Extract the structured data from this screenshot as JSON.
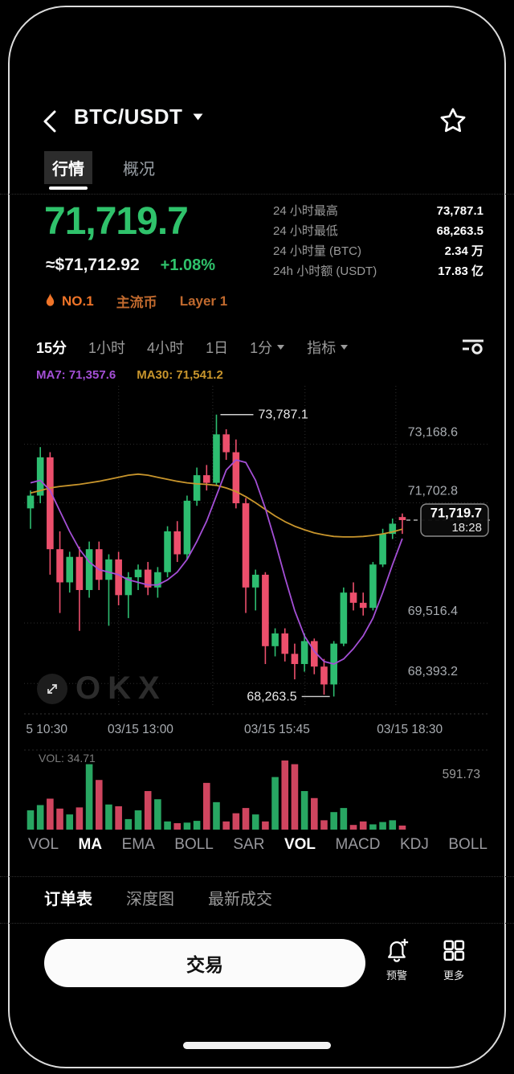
{
  "header": {
    "title": "BTC/USDT"
  },
  "top_tabs": [
    {
      "label": "行情",
      "active": true
    },
    {
      "label": "概况",
      "active": false
    }
  ],
  "price": {
    "last": "71,719.7",
    "fiat": "≈$71,712.92",
    "change": "+1.08%"
  },
  "badges": [
    {
      "label": "NO.1",
      "icon": "flame",
      "bright": true
    },
    {
      "label": "主流币",
      "bright": false
    },
    {
      "label": "Layer 1",
      "bright": false
    }
  ],
  "stats": [
    {
      "label": "24 小时最高",
      "value": "73,787.1"
    },
    {
      "label": "24 小时最低",
      "value": "68,263.5"
    },
    {
      "label": "24 小时量 (BTC)",
      "value": "2.34 万"
    },
    {
      "label": "24h 小时额 (USDT)",
      "value": "17.83 亿"
    }
  ],
  "timeframes": [
    {
      "label": "15分",
      "active": true,
      "caret": false
    },
    {
      "label": "1小时",
      "active": false,
      "caret": false
    },
    {
      "label": "4小时",
      "active": false,
      "caret": false
    },
    {
      "label": "1日",
      "active": false,
      "caret": false
    },
    {
      "label": "1分",
      "active": false,
      "caret": true
    },
    {
      "label": "指标",
      "active": false,
      "caret": true
    }
  ],
  "watermark": "OKX",
  "chart_data": {
    "type": "candlestick",
    "title": "BTC/USDT 15分 K线",
    "ma_labels": {
      "ma7": "MA7: 71,357.6",
      "ma30": "MA30: 71,541.2"
    },
    "ylim": [
      68050,
      74350
    ],
    "grid": true,
    "y_ticks": [
      {
        "label": "73,168.6",
        "pos": 0.144
      },
      {
        "label": "71,702.8",
        "pos": 0.326
      },
      {
        "label": "69,516.4",
        "pos": 0.7
      },
      {
        "label": "68,393.2",
        "pos": 0.888
      }
    ],
    "x_ticks": [
      {
        "label": "5 10:30",
        "x": 0.004,
        "anchor": "start"
      },
      {
        "label": "03/15 13:00",
        "x": 0.25,
        "anchor": "middle"
      },
      {
        "label": "03/15 15:45",
        "x": 0.543,
        "anchor": "middle"
      },
      {
        "label": "03/15 18:30",
        "x": 0.828,
        "anchor": "middle"
      }
    ],
    "grid_x": [
      0.203,
      0.405,
      0.603,
      0.798
    ],
    "annotations": {
      "high": "73,787.1",
      "low": "68,263.5",
      "last": "71,719.7",
      "last_time": "18:28"
    },
    "candles": [
      [
        71950,
        72300,
        71550,
        72200
      ],
      [
        72200,
        73150,
        72050,
        72950
      ],
      [
        72950,
        73050,
        70650,
        71150
      ],
      [
        71150,
        71500,
        69900,
        70500
      ],
      [
        70500,
        71100,
        70300,
        71000
      ],
      [
        71000,
        71200,
        69550,
        70350
      ],
      [
        70350,
        71300,
        70200,
        71150
      ],
      [
        71150,
        71300,
        70350,
        70550
      ],
      [
        70550,
        71050,
        69650,
        70950
      ],
      [
        70950,
        71100,
        70050,
        70250
      ],
      [
        70250,
        70700,
        69800,
        70600
      ],
      [
        70600,
        70850,
        70350,
        70750
      ],
      [
        70750,
        70900,
        70250,
        70400
      ],
      [
        70400,
        70800,
        70200,
        70700
      ],
      [
        70700,
        71600,
        70600,
        71500
      ],
      [
        71500,
        71700,
        70900,
        71050
      ],
      [
        71050,
        72200,
        70950,
        72100
      ],
      [
        72100,
        72750,
        72000,
        72600
      ],
      [
        72600,
        72800,
        72300,
        72450
      ],
      [
        72450,
        73787.1,
        72400,
        73400
      ],
      [
        73400,
        73500,
        72900,
        73050
      ],
      [
        73050,
        73300,
        71950,
        72050
      ],
      [
        72050,
        72150,
        69900,
        70400
      ],
      [
        70400,
        70750,
        69950,
        70650
      ],
      [
        70650,
        70700,
        68900,
        69250
      ],
      [
        69250,
        69600,
        69050,
        69500
      ],
      [
        69500,
        69600,
        68950,
        69100
      ],
      [
        69100,
        69300,
        68600,
        68900
      ],
      [
        68900,
        69500,
        68750,
        69350
      ],
      [
        69350,
        69400,
        68700,
        68850
      ],
      [
        68850,
        69000,
        68300,
        68500
      ],
      [
        68500,
        69350,
        68263.5,
        69300
      ],
      [
        69300,
        70400,
        69250,
        70300
      ],
      [
        70300,
        70500,
        69950,
        70100
      ],
      [
        70100,
        70300,
        69850,
        70000
      ],
      [
        70000,
        70900,
        69950,
        70850
      ],
      [
        70850,
        71550,
        70800,
        71450
      ],
      [
        71450,
        71750,
        71350,
        71650
      ],
      [
        71780,
        71850,
        71450,
        71719.7
      ]
    ],
    "ma7": [
      72450,
      72500,
      72300,
      71900,
      71500,
      71150,
      70900,
      70750,
      70700,
      70650,
      70550,
      70500,
      70450,
      70450,
      70550,
      70700,
      70950,
      71300,
      71700,
      72200,
      72700,
      72900,
      72850,
      72500,
      71950,
      71300,
      70600,
      69950,
      69450,
      69150,
      68950,
      68900,
      69000,
      69200,
      69450,
      69800,
      70300,
      70850,
      71357.6
    ],
    "ma30": [
      72250,
      72300,
      72350,
      72380,
      72400,
      72420,
      72450,
      72480,
      72520,
      72560,
      72600,
      72620,
      72600,
      72560,
      72520,
      72480,
      72450,
      72430,
      72420,
      72400,
      72350,
      72280,
      72180,
      72060,
      71930,
      71800,
      71690,
      71600,
      71530,
      71470,
      71430,
      71400,
      71390,
      71390,
      71400,
      71420,
      71450,
      71490,
      71541.2
    ],
    "volume": {
      "current_label": "VOL: 34.71",
      "max_label": "591.73",
      "max": 591.73,
      "values": [
        165,
        210,
        265,
        180,
        130,
        190,
        560,
        425,
        215,
        200,
        90,
        165,
        330,
        260,
        70,
        55,
        60,
        75,
        400,
        235,
        70,
        140,
        185,
        130,
        70,
        450,
        591.73,
        560,
        330,
        270,
        80,
        150,
        185,
        40,
        70,
        45,
        65,
        80,
        34.71
      ]
    }
  },
  "indicator_tabs": [
    {
      "label": "VOL",
      "active": false
    },
    {
      "label": "MA",
      "active": true
    },
    {
      "label": "EMA",
      "active": false
    },
    {
      "label": "BOLL",
      "active": false
    },
    {
      "label": "SAR",
      "active": false
    },
    {
      "label": "VOL",
      "active": true
    },
    {
      "label": "MACD",
      "active": false
    },
    {
      "label": "KDJ",
      "active": false
    },
    {
      "label": "BOLL",
      "active": false
    }
  ],
  "bottom_tabs": [
    {
      "label": "订单表",
      "active": true
    },
    {
      "label": "深度图",
      "active": false
    },
    {
      "label": "最新成交",
      "active": false
    }
  ],
  "actions": {
    "trade": "交易",
    "alert": "预警",
    "more": "更多"
  },
  "icons": {
    "back": "chevron-left",
    "pair_caret": "chevron-down",
    "favorite": "star-outline",
    "tf_caret": "chevron-down",
    "settings": "indicator-settings",
    "flame": "flame",
    "expand": "expand-arrows",
    "alert": "bell-plus",
    "more": "grid-2x2"
  },
  "colors": {
    "up": "#2dbd70",
    "down": "#ec4f6c",
    "ma7": "#a44fd6",
    "ma30": "#c8952c",
    "accent_green": "#2fc26b",
    "badge_orange": "#ef7428",
    "badge_dim": "#c16a2e",
    "axis_text": "#a9adb2",
    "grid": "#2e2e2e"
  }
}
